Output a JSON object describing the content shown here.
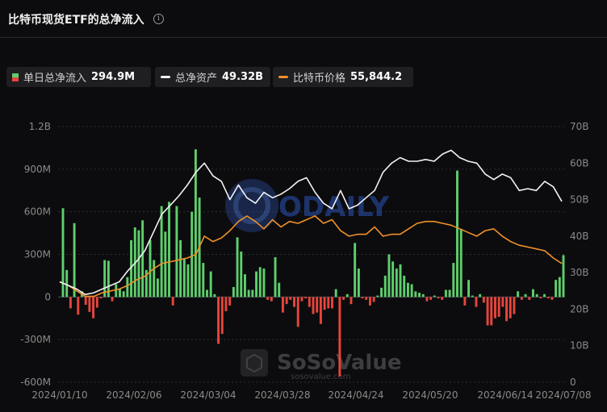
{
  "header": {
    "title": "比特币现货ETF的总净流入",
    "info_icon": "info-circle-icon"
  },
  "legend": [
    {
      "key": "daily",
      "label": "单日总净流入",
      "value": "294.9M",
      "swatch": "bar"
    },
    {
      "key": "assets",
      "label": "总净资产",
      "value": "49.32B",
      "swatch": "line"
    },
    {
      "key": "price",
      "label": "比特币价格",
      "value": "55,844.2",
      "swatch": "line"
    }
  ],
  "colors": {
    "positive": "#5ecf6c",
    "negative": "#e8453c",
    "assets_line": "#f2f2f2",
    "price_line": "#f0902a",
    "grid": "#2e2e33"
  },
  "watermark": {
    "center_logo_text": "ODAILY",
    "brand_text": "SoSoValue",
    "brand_url": "sosovalue.com"
  },
  "chart_data": {
    "type": "bar+line",
    "x_tick_labels": [
      "2024/01/10",
      "2024/02/06",
      "2024/03/04",
      "2024/03/28",
      "2024/04/24",
      "2024/05/20",
      "2024/06/14",
      "2024/07/08"
    ],
    "y_left": {
      "ticks": [
        "1.2B",
        "900M",
        "600M",
        "300M",
        "0",
        "-300M",
        "-600M"
      ],
      "range": [
        -600,
        1200
      ],
      "unit": "M"
    },
    "y_right": {
      "ticks": [
        "70B",
        "60B",
        "50B",
        "40B",
        "30B",
        "20B",
        "10B",
        "0"
      ],
      "range": [
        0,
        70
      ],
      "unit": "B"
    },
    "series": [
      {
        "name": "单日总净流入",
        "kind": "bar",
        "unit": "M",
        "values": [
          625,
          190,
          -80,
          520,
          -125,
          40,
          -55,
          -105,
          -150,
          -75,
          -10,
          260,
          255,
          -30,
          90,
          60,
          40,
          140,
          400,
          490,
          470,
          540,
          190,
          400,
          260,
          130,
          640,
          460,
          670,
          -60,
          640,
          400,
          270,
          230,
          600,
          1040,
          700,
          240,
          50,
          180,
          20,
          -330,
          -260,
          -100,
          -60,
          70,
          420,
          320,
          160,
          50,
          50,
          180,
          210,
          200,
          -20,
          -30,
          280,
          100,
          -110,
          -50,
          -20,
          -70,
          -210,
          -30,
          -10,
          -70,
          -120,
          -110,
          -190,
          -90,
          -80,
          -80,
          55,
          -560,
          -20,
          20,
          -50,
          380,
          200,
          -10,
          -20,
          -60,
          -35,
          10,
          65,
          150,
          300,
          250,
          200,
          230,
          150,
          100,
          90,
          40,
          30,
          20,
          -30,
          -20,
          10,
          -10,
          -20,
          50,
          50,
          240,
          890,
          480,
          -60,
          120,
          10,
          -70,
          20,
          -40,
          -200,
          -200,
          -150,
          -140,
          -70,
          -170,
          -150,
          -120,
          40,
          -20,
          20,
          -20,
          55,
          20,
          -10,
          20,
          -10,
          -20,
          120,
          140,
          295
        ]
      },
      {
        "name": "总净资产",
        "kind": "line",
        "unit": "B",
        "points": [
          [
            0,
            27.5
          ],
          [
            5,
            26.5
          ],
          [
            10,
            25.5
          ],
          [
            15,
            24.0
          ],
          [
            20,
            24.5
          ],
          [
            25,
            25.5
          ],
          [
            30,
            26.5
          ],
          [
            35,
            27.5
          ],
          [
            40,
            30.5
          ],
          [
            45,
            33.0
          ],
          [
            50,
            36.0
          ],
          [
            55,
            41.0
          ],
          [
            60,
            46.0
          ],
          [
            65,
            48.5
          ],
          [
            70,
            51.0
          ],
          [
            75,
            54.0
          ],
          [
            80,
            57.5
          ],
          [
            85,
            60.0
          ],
          [
            90,
            56.5
          ],
          [
            95,
            55.0
          ],
          [
            100,
            50.0
          ],
          [
            105,
            54.0
          ],
          [
            110,
            50.5
          ],
          [
            115,
            49.0
          ],
          [
            120,
            52.0
          ],
          [
            125,
            50.5
          ],
          [
            130,
            51.5
          ],
          [
            135,
            53.0
          ],
          [
            140,
            55.0
          ],
          [
            145,
            56.0
          ],
          [
            150,
            52.0
          ],
          [
            155,
            49.0
          ],
          [
            160,
            47.5
          ],
          [
            165,
            52.5
          ],
          [
            170,
            47.5
          ],
          [
            175,
            48.5
          ],
          [
            180,
            50.5
          ],
          [
            185,
            52.5
          ],
          [
            190,
            57.5
          ],
          [
            195,
            60.0
          ],
          [
            200,
            61.5
          ],
          [
            205,
            60.5
          ],
          [
            210,
            60.5
          ],
          [
            215,
            61.0
          ],
          [
            220,
            60.5
          ],
          [
            225,
            62.5
          ],
          [
            230,
            63.5
          ],
          [
            235,
            61.5
          ],
          [
            240,
            60.5
          ],
          [
            245,
            60.0
          ],
          [
            250,
            57.0
          ],
          [
            255,
            55.5
          ],
          [
            260,
            57.0
          ],
          [
            265,
            56.0
          ],
          [
            270,
            52.5
          ],
          [
            275,
            53.0
          ],
          [
            280,
            52.5
          ],
          [
            285,
            55.0
          ],
          [
            290,
            53.5
          ],
          [
            295,
            49.5
          ]
        ]
      },
      {
        "name": "比特币价格",
        "kind": "line",
        "unit": "B",
        "points": [
          [
            0,
            27.5
          ],
          [
            5,
            26.5
          ],
          [
            10,
            25.0
          ],
          [
            15,
            23.5
          ],
          [
            20,
            23.5
          ],
          [
            25,
            24.5
          ],
          [
            30,
            25.0
          ],
          [
            35,
            25.5
          ],
          [
            40,
            26.5
          ],
          [
            45,
            28.0
          ],
          [
            50,
            29.0
          ],
          [
            55,
            31.0
          ],
          [
            60,
            32.5
          ],
          [
            65,
            33.0
          ],
          [
            70,
            33.5
          ],
          [
            75,
            34.0
          ],
          [
            80,
            35.0
          ],
          [
            85,
            40.0
          ],
          [
            90,
            38.5
          ],
          [
            95,
            39.5
          ],
          [
            100,
            41.5
          ],
          [
            105,
            44.0
          ],
          [
            110,
            45.5
          ],
          [
            115,
            44.0
          ],
          [
            120,
            42.0
          ],
          [
            125,
            44.5
          ],
          [
            130,
            42.5
          ],
          [
            135,
            44.0
          ],
          [
            140,
            43.5
          ],
          [
            145,
            44.5
          ],
          [
            150,
            45.5
          ],
          [
            155,
            43.5
          ],
          [
            160,
            44.5
          ],
          [
            165,
            41.5
          ],
          [
            170,
            40.0
          ],
          [
            175,
            40.5
          ],
          [
            180,
            40.5
          ],
          [
            185,
            42.5
          ],
          [
            190,
            40.0
          ],
          [
            195,
            40.5
          ],
          [
            200,
            40.5
          ],
          [
            205,
            42.0
          ],
          [
            210,
            43.5
          ],
          [
            215,
            44.0
          ],
          [
            220,
            44.0
          ],
          [
            225,
            43.5
          ],
          [
            230,
            43.0
          ],
          [
            235,
            42.0
          ],
          [
            240,
            41.0
          ],
          [
            245,
            40.0
          ],
          [
            250,
            41.5
          ],
          [
            255,
            42.0
          ],
          [
            260,
            40.0
          ],
          [
            265,
            38.5
          ],
          [
            270,
            37.5
          ],
          [
            275,
            37.0
          ],
          [
            280,
            36.5
          ],
          [
            285,
            36.0
          ],
          [
            290,
            34.0
          ],
          [
            295,
            32.5
          ]
        ]
      }
    ],
    "grid": "horizontal",
    "legend_position": "top-left"
  }
}
